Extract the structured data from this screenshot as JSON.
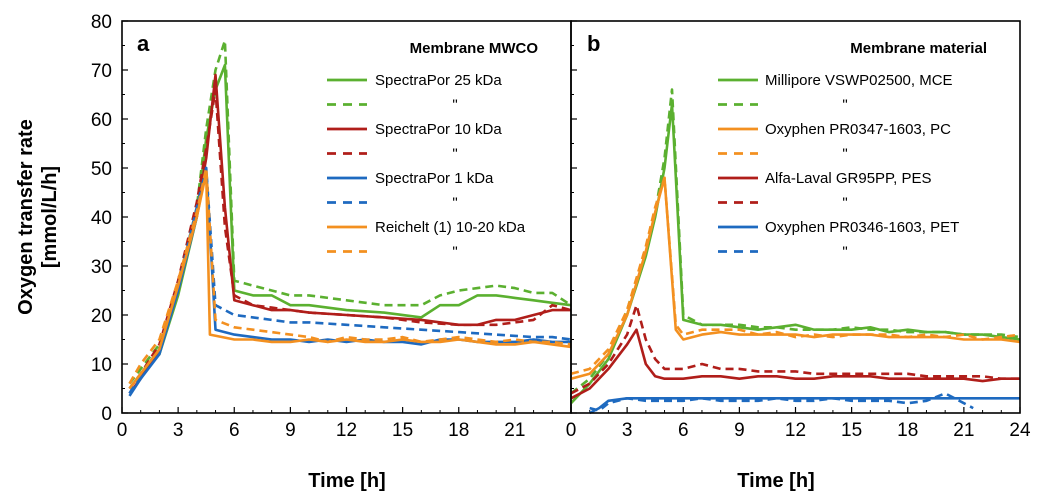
{
  "ylabel_line1": "Oxygen transfer rate",
  "ylabel_line2": "[mmol/L/h]",
  "xlabel_a": "Time   [h]",
  "xlabel_b": "Time   [h]",
  "colors": {
    "green": "#5BB030",
    "red": "#B01E1A",
    "blue": "#1E6AC0",
    "orange": "#F39020"
  },
  "chart_data": [
    {
      "panel": "a",
      "type": "line",
      "legend_title": "Membrane MWCO",
      "xlim": [
        0,
        24
      ],
      "ylim": [
        0,
        80
      ],
      "xticks": [
        "0",
        "3",
        "6",
        "9",
        "12",
        "15",
        "18",
        "21"
      ],
      "yticks": [
        "0",
        "10",
        "20",
        "30",
        "40",
        "50",
        "60",
        "70",
        "80"
      ],
      "series": [
        {
          "name": "SpectraPor 25 kDa",
          "color": "#5BB030",
          "dash": false,
          "x": [
            0.4,
            1,
            2,
            3,
            4,
            4.5,
            5,
            5.5,
            6,
            7,
            8,
            9,
            10,
            12,
            14,
            16,
            17,
            18,
            19,
            20,
            21,
            22,
            23,
            24
          ],
          "y": [
            5,
            8,
            12,
            24,
            40,
            56,
            66,
            71,
            25,
            24,
            24,
            22,
            22,
            21,
            20.5,
            19.5,
            22,
            22,
            24,
            24,
            23.5,
            23,
            22.5,
            22
          ]
        },
        {
          "name": "\"",
          "color": "#5BB030",
          "dash": true,
          "x": [
            0.4,
            1,
            2,
            3,
            4,
            4.5,
            5,
            5.5,
            6,
            7,
            8,
            9,
            10,
            12,
            14,
            16,
            17,
            18,
            19,
            20,
            21,
            22,
            23,
            24
          ],
          "y": [
            6,
            9,
            14,
            26,
            42,
            58,
            70,
            76,
            27,
            26,
            25,
            24,
            24,
            23,
            22,
            22,
            24,
            25,
            25.5,
            26,
            25.5,
            24.5,
            24.5,
            22
          ]
        },
        {
          "name": "SpectraPor 10 kDa",
          "color": "#B01E1A",
          "dash": false,
          "x": [
            0.4,
            1,
            2,
            3,
            4,
            4.5,
            5,
            5.5,
            6,
            7,
            8,
            9,
            10,
            12,
            14,
            16,
            18,
            19,
            20,
            21,
            22,
            23,
            24
          ],
          "y": [
            4,
            7,
            13,
            25,
            41,
            52,
            69,
            42,
            23,
            22,
            21,
            21,
            20.5,
            20,
            19.5,
            19,
            18,
            18,
            19,
            19,
            20,
            21,
            21
          ]
        },
        {
          "name": "\"",
          "color": "#B01E1A",
          "dash": true,
          "x": [
            0.4,
            1,
            2,
            3,
            4,
            4.5,
            5,
            5.5,
            6,
            7,
            8,
            9,
            10,
            12,
            14,
            16,
            18,
            19,
            20,
            21,
            22,
            23,
            24
          ],
          "y": [
            5,
            8,
            14,
            27,
            43,
            54,
            66,
            38,
            24,
            22,
            21.5,
            21,
            20.5,
            20,
            19.5,
            18.5,
            18,
            18,
            18,
            18.5,
            19,
            22,
            21
          ]
        },
        {
          "name": "SpectraPor 1 kDa",
          "color": "#1E6AC0",
          "dash": false,
          "x": [
            0.4,
            1,
            2,
            3,
            4,
            4.5,
            5,
            6,
            7,
            8,
            9,
            10,
            11,
            12,
            13,
            14,
            15,
            16,
            17,
            18,
            19,
            20,
            21,
            22,
            23,
            24
          ],
          "y": [
            3.5,
            7,
            12,
            25,
            40,
            50,
            17,
            16,
            15.5,
            15,
            15,
            14.5,
            15,
            14.5,
            15,
            14.5,
            14.5,
            14,
            15,
            15,
            14.5,
            14.5,
            14.5,
            15,
            14.5,
            14.5
          ]
        },
        {
          "name": "\"",
          "color": "#1E6AC0",
          "dash": true,
          "x": [
            0.4,
            1,
            2,
            3,
            4,
            4.5,
            5,
            6,
            7,
            8,
            9,
            10,
            12,
            14,
            16,
            18,
            20,
            22,
            23,
            24
          ],
          "y": [
            4,
            8,
            13,
            26,
            42,
            50,
            22,
            20,
            19.5,
            19,
            18.5,
            18.5,
            18,
            17.5,
            17,
            16.5,
            16,
            15.5,
            15.5,
            15
          ]
        },
        {
          "name": "Reichelt (1) 10-20 kDa",
          "color": "#F39020",
          "dash": false,
          "x": [
            0.4,
            1,
            2,
            3,
            4,
            4.5,
            4.7,
            6,
            7,
            8,
            9,
            10,
            11,
            12,
            13,
            14,
            15,
            16,
            17,
            18,
            19,
            20,
            21,
            22,
            23,
            24
          ],
          "y": [
            5,
            8,
            13,
            26,
            40,
            49,
            16,
            15,
            15,
            14.5,
            14.5,
            15,
            14.5,
            15,
            14.5,
            14.5,
            15,
            14.5,
            14.5,
            15,
            14.5,
            14,
            14,
            14.5,
            14,
            13.5
          ]
        },
        {
          "name": "\"",
          "color": "#F39020",
          "dash": true,
          "x": [
            0.4,
            1,
            2,
            3,
            4,
            4.5,
            5,
            6,
            7,
            8,
            9,
            10,
            11,
            12,
            13,
            14,
            15,
            16,
            17,
            18,
            19,
            20,
            21,
            22,
            23,
            24
          ],
          "y": [
            6,
            10,
            15,
            27,
            41,
            50,
            19,
            17.5,
            17,
            16.5,
            16,
            15.5,
            14.5,
            15.5,
            15,
            15,
            15.5,
            14.5,
            15,
            15.5,
            15,
            14.5,
            15,
            14.5,
            14.5,
            14
          ]
        }
      ]
    },
    {
      "panel": "b",
      "type": "line",
      "legend_title": "Membrane material",
      "xlim": [
        0,
        24
      ],
      "ylim": [
        0,
        80
      ],
      "xticks": [
        "0",
        "3",
        "6",
        "9",
        "12",
        "15",
        "18",
        "21",
        "24"
      ],
      "series": [
        {
          "name": "Millipore VSWP02500, MCE",
          "color": "#5BB030",
          "dash": false,
          "x": [
            0,
            1,
            2,
            3,
            4,
            4.5,
            5,
            5.4,
            6,
            7,
            8,
            9,
            10,
            11,
            12,
            13,
            14,
            15,
            16,
            17,
            18,
            19,
            20,
            21,
            22,
            23,
            24
          ],
          "y": [
            2,
            6,
            11,
            20,
            32,
            40,
            50,
            63,
            19,
            18,
            18,
            17.5,
            17,
            17.5,
            18,
            17,
            17,
            17,
            17.5,
            16.5,
            17,
            16.5,
            16.5,
            16,
            16,
            15.5,
            15
          ]
        },
        {
          "name": "\"",
          "color": "#5BB030",
          "dash": true,
          "x": [
            0,
            1,
            2,
            3,
            4,
            4.5,
            5,
            5.4,
            6,
            7,
            8,
            9,
            10,
            11,
            12,
            13,
            14,
            15,
            16,
            17,
            18,
            19,
            20,
            21,
            22,
            23,
            24
          ],
          "y": [
            4,
            7,
            12,
            21,
            33,
            41,
            52,
            66,
            20,
            18,
            18,
            18,
            17.5,
            17.5,
            17,
            17,
            17,
            17.5,
            17,
            17,
            16.5,
            16.5,
            16.5,
            16,
            16,
            16,
            15.5
          ]
        },
        {
          "name": "Oxyphen PR0347-1603, PC",
          "color": "#F39020",
          "dash": false,
          "x": [
            0,
            1,
            2,
            3,
            4,
            4.5,
            5,
            5.6,
            6,
            7,
            8,
            9,
            10,
            11,
            12,
            13,
            14,
            15,
            16,
            17,
            18,
            19,
            20,
            21,
            22,
            23,
            24
          ],
          "y": [
            7,
            8,
            12,
            20,
            33,
            41,
            48,
            17,
            15,
            16,
            16.5,
            16,
            16,
            16,
            16,
            15.5,
            16,
            16,
            16,
            15.5,
            15.5,
            15.5,
            15.5,
            15,
            15,
            15,
            14.5
          ]
        },
        {
          "name": "\"",
          "color": "#F39020",
          "dash": true,
          "x": [
            0,
            1,
            2,
            3,
            4,
            4.5,
            5,
            5.6,
            6,
            7,
            8,
            9,
            10,
            11,
            12,
            13,
            14,
            15,
            16,
            17,
            18,
            19,
            20,
            21,
            22,
            23,
            24
          ],
          "y": [
            8,
            9,
            13,
            21,
            34,
            42,
            48,
            18,
            16,
            17,
            17,
            17,
            16,
            16.5,
            15.5,
            16,
            15.5,
            16,
            16,
            16,
            15.5,
            16,
            15.5,
            16,
            15,
            15.5,
            16
          ]
        },
        {
          "name": "Alfa-Laval GR95PP, PES",
          "color": "#B01E1A",
          "dash": false,
          "x": [
            0,
            1,
            2,
            3,
            3.5,
            4,
            4.5,
            5,
            6,
            7,
            8,
            9,
            10,
            11,
            12,
            13,
            14,
            15,
            16,
            17,
            18,
            19,
            20,
            21,
            22,
            23,
            24
          ],
          "y": [
            3,
            5,
            9,
            14,
            17,
            10,
            7.5,
            7,
            7,
            7.5,
            7.5,
            7,
            7.5,
            7.5,
            7,
            7,
            7.5,
            7.5,
            7.5,
            7,
            7,
            7,
            7,
            7,
            6.5,
            7,
            7
          ]
        },
        {
          "name": "\"",
          "color": "#B01E1A",
          "dash": true,
          "x": [
            0,
            1,
            2,
            3,
            3.5,
            4,
            4.5,
            5,
            6,
            7,
            8,
            9,
            10,
            11,
            12,
            13,
            14,
            15,
            16,
            17,
            18,
            19,
            20,
            21,
            22,
            23,
            24
          ],
          "y": [
            4,
            6,
            10,
            16,
            22,
            15,
            11,
            9,
            9,
            10,
            9,
            9,
            8.5,
            8.5,
            8.5,
            8,
            8,
            8,
            8,
            8,
            8,
            7.5,
            7.5,
            7.5,
            7.5,
            7,
            7
          ]
        },
        {
          "name": "Oxyphen PR0346-1603, PET",
          "color": "#1E6AC0",
          "dash": false,
          "x": [
            1,
            1.5,
            2,
            3,
            4,
            5,
            6,
            7,
            8,
            9,
            10,
            11,
            12,
            13,
            14,
            15,
            16,
            17,
            18,
            19,
            20,
            21,
            22,
            23,
            24
          ],
          "y": [
            0,
            1,
            2.5,
            3,
            3,
            3,
            3,
            3,
            3,
            3,
            3,
            3,
            3,
            3,
            3,
            3,
            3,
            3,
            3,
            3,
            3,
            3,
            3,
            3,
            3
          ]
        },
        {
          "name": "\"",
          "color": "#1E6AC0",
          "dash": true,
          "x": [
            1,
            1.5,
            2,
            3,
            4,
            5,
            6,
            7,
            8,
            9,
            10,
            11,
            12,
            13,
            14,
            15,
            16,
            17,
            18,
            19,
            20,
            21,
            21.5
          ],
          "y": [
            1,
            0.5,
            2,
            3,
            2.5,
            2.5,
            2.5,
            3,
            2.5,
            2.5,
            2.5,
            3,
            2.5,
            2.5,
            3,
            2.5,
            2.5,
            2.5,
            2,
            2.5,
            4,
            2,
            1
          ]
        }
      ]
    }
  ]
}
